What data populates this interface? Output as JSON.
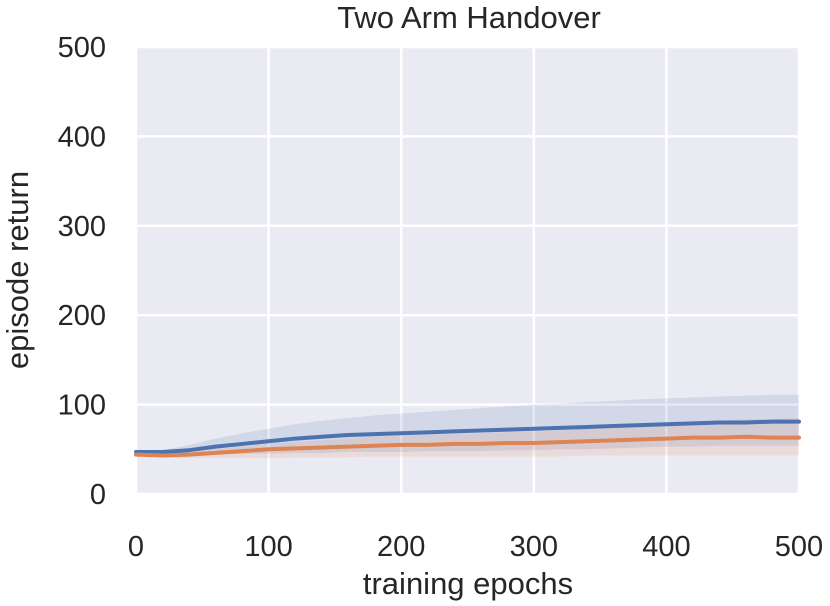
{
  "chart_data": {
    "type": "line",
    "title": "Two Arm Handover",
    "xlabel": "training epochs",
    "ylabel": "episode return",
    "xlim": [
      0,
      500
    ],
    "ylim": [
      0,
      500
    ],
    "xticks": [
      0,
      100,
      200,
      300,
      400,
      500
    ],
    "yticks": [
      0,
      100,
      200,
      300,
      400,
      500
    ],
    "grid": true,
    "series": [
      {
        "color": "#4c72b0",
        "x": [
          0,
          20,
          40,
          60,
          80,
          100,
          120,
          140,
          160,
          180,
          200,
          220,
          240,
          260,
          280,
          300,
          320,
          340,
          360,
          380,
          400,
          420,
          440,
          460,
          480,
          500
        ],
        "y": [
          47,
          47,
          49,
          53,
          56,
          59,
          62,
          64,
          66,
          67,
          68,
          69,
          70,
          71,
          72,
          73,
          74,
          75,
          76,
          77,
          78,
          79,
          80,
          80,
          81,
          81
        ],
        "upper": [
          48,
          49,
          55,
          62,
          68,
          73,
          78,
          82,
          85,
          88,
          90,
          92,
          94,
          96,
          98,
          100,
          101,
          103,
          104,
          106,
          107,
          108,
          109,
          110,
          111,
          111
        ],
        "lower": [
          46,
          45,
          44,
          44,
          45,
          45,
          46,
          46,
          47,
          47,
          47,
          48,
          48,
          48,
          49,
          49,
          50,
          50,
          51,
          52,
          53,
          53,
          54,
          54,
          54,
          54
        ]
      },
      {
        "color": "#dd8452",
        "x": [
          0,
          20,
          40,
          60,
          80,
          100,
          120,
          140,
          160,
          180,
          200,
          220,
          240,
          260,
          280,
          300,
          320,
          340,
          360,
          380,
          400,
          420,
          440,
          460,
          480,
          500
        ],
        "y": [
          44,
          43,
          44,
          46,
          48,
          50,
          51,
          52,
          53,
          54,
          55,
          55,
          56,
          56,
          57,
          57,
          58,
          59,
          60,
          61,
          62,
          63,
          63,
          64,
          63,
          63
        ],
        "upper": [
          45,
          45,
          47,
          50,
          53,
          56,
          58,
          60,
          62,
          64,
          65,
          66,
          67,
          68,
          69,
          70,
          71,
          73,
          75,
          77,
          79,
          81,
          82,
          84,
          84,
          85
        ],
        "lower": [
          43,
          41,
          40,
          40,
          40,
          40,
          41,
          41,
          41,
          42,
          42,
          42,
          42,
          42,
          42,
          42,
          42,
          43,
          43,
          43,
          43,
          43,
          43,
          43,
          43,
          43
        ]
      }
    ]
  }
}
